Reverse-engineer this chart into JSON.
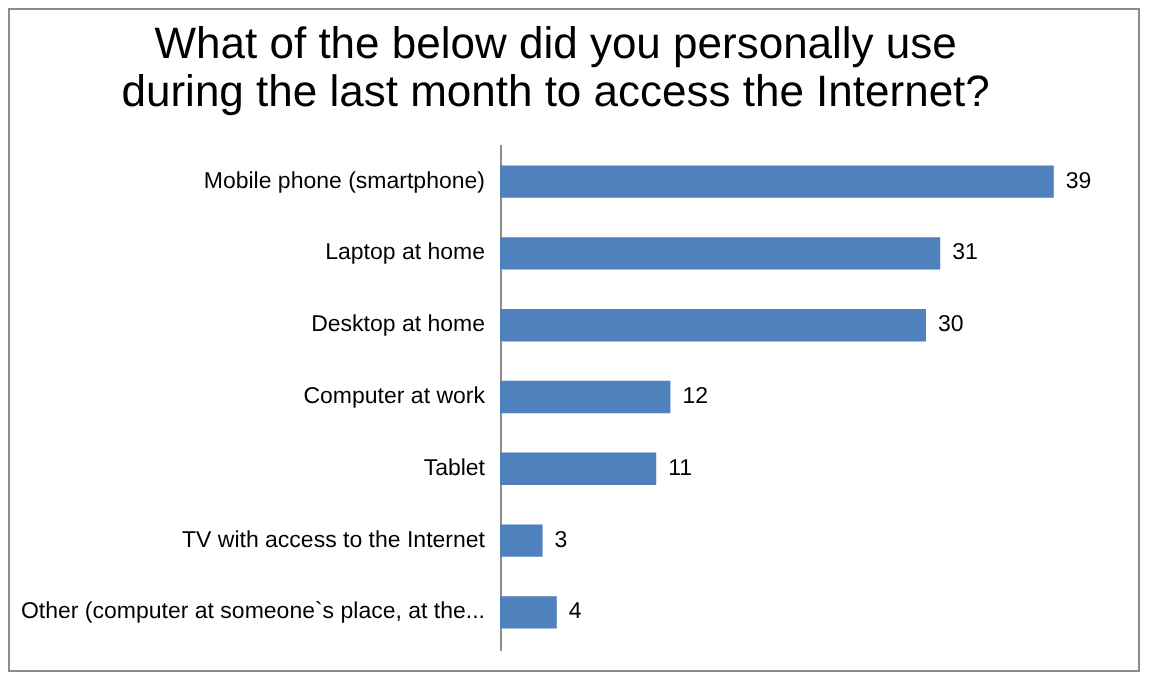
{
  "chart_data": {
    "type": "bar",
    "orientation": "horizontal",
    "title": "What of the below did you personally use during the last month to access the Internet?",
    "categories": [
      "Mobile phone (smartphone)",
      "Laptop at home",
      "Desktop at home",
      "Computer at work",
      "Tablet",
      "TV with access to the Internet",
      "Other (computer at someone`s place, at the..."
    ],
    "values": [
      39,
      31,
      30,
      12,
      11,
      3,
      4
    ],
    "color": "#4f81bd",
    "data_labels": true
  }
}
